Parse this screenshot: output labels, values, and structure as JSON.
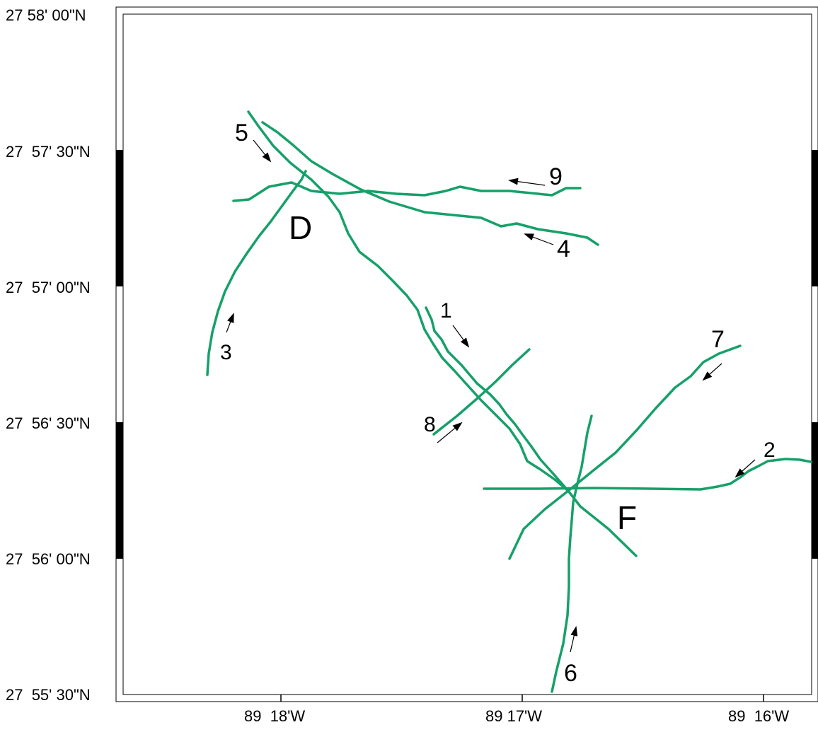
{
  "map": {
    "track_color": "#16a06a",
    "arrow_color": "#000000",
    "lat_labels": [
      "27 58' 00\"N",
      "27  57' 30\"N",
      "27  57' 00\"N",
      "27  56' 30\"N",
      "27  56' 00\"N",
      "27  55' 30\"N"
    ],
    "lon_labels": [
      "89  18'W",
      "89 17'W",
      "89  16'W"
    ],
    "sites": [
      "D",
      "F"
    ],
    "lines": [
      "1",
      "2",
      "3",
      "4",
      "5",
      "6",
      "7",
      "8",
      "9"
    ]
  }
}
